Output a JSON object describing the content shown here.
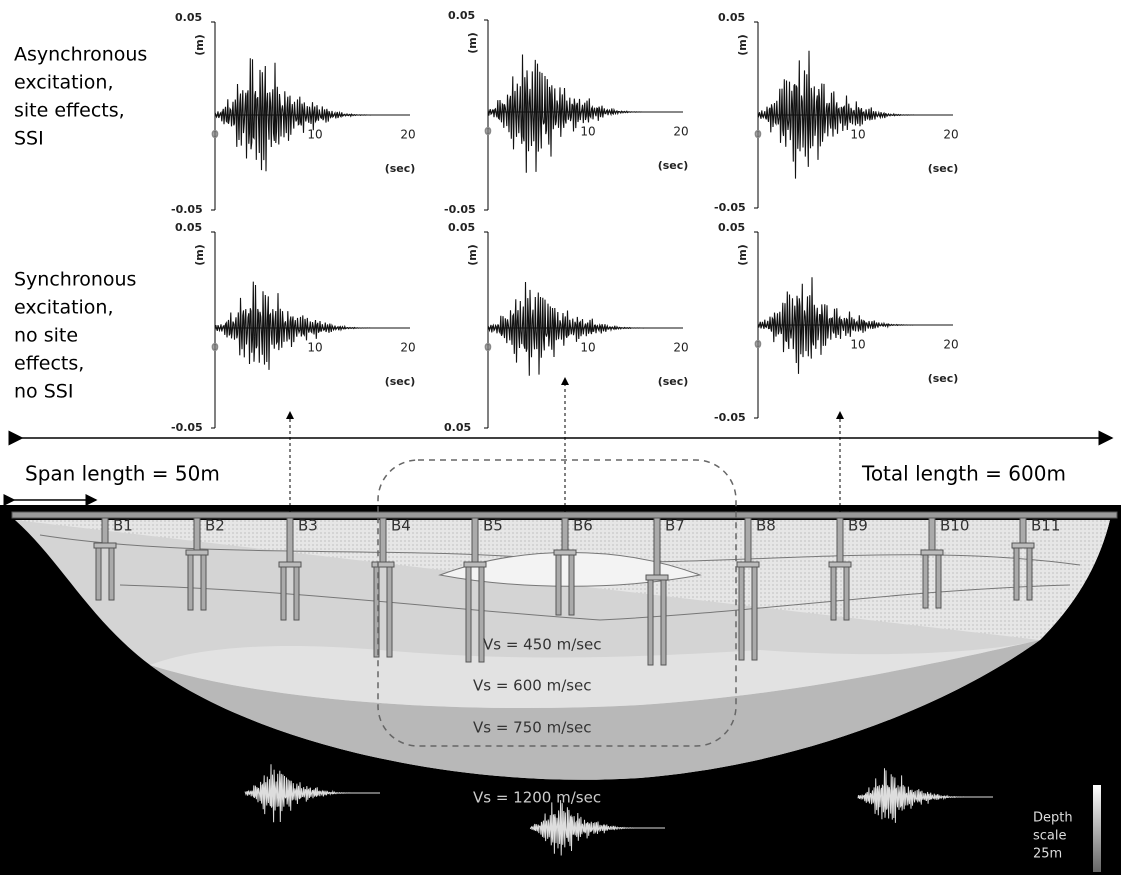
{
  "row_labels": [
    [
      "Asynchronous",
      "excitation,",
      "site effects,",
      "SSI"
    ],
    [
      "Synchronous",
      "excitation,",
      "no site",
      "effects,",
      "no SSI"
    ]
  ],
  "panels": [
    {
      "y_top": "0.05",
      "y_bottom": "-0.05",
      "y_unit": "(m)",
      "x_zero": "0",
      "x_mid": "10",
      "x_max": "20",
      "x_unit": "(sec)"
    },
    {
      "y_top": "0.05",
      "y_bottom": "-0.05",
      "y_unit": "(m)",
      "x_zero": "0",
      "x_mid": "10",
      "x_max": "20",
      "x_unit": "(sec)"
    },
    {
      "y_top": "0.05",
      "y_bottom": "-0.05",
      "y_unit": "(m)",
      "x_zero": "0",
      "x_mid": "10",
      "x_max": "20",
      "x_unit": "(sec)"
    },
    {
      "y_top": "0.05",
      "y_bottom": "-0.05",
      "y_unit": "(m)",
      "x_zero": "0",
      "x_mid": "10",
      "x_max": "20",
      "x_unit": "(sec)"
    },
    {
      "y_top": "0.05",
      "y_bottom": "0.05",
      "y_unit": "(m)",
      "x_zero": "0",
      "x_mid": "10",
      "x_max": "20",
      "x_unit": "(sec)"
    },
    {
      "y_top": "0.05",
      "y_bottom": "-0.05",
      "y_unit": "(m)",
      "x_zero": "0",
      "x_mid": "10",
      "x_max": "20",
      "x_unit": "(sec)"
    }
  ],
  "span_label": "Span length = 50m",
  "total_label": "Total length = 600m",
  "piers": [
    "B1",
    "B2",
    "B3",
    "B4",
    "B5",
    "B6",
    "B7",
    "B8",
    "B9",
    "B10",
    "B11"
  ],
  "layers": [
    "Vs = 450 m/sec",
    "Vs = 600 m/sec",
    "Vs = 750 m/sec",
    "Vs = 1200 m/sec"
  ],
  "depth_scale": [
    "Depth",
    "scale",
    "25m"
  ]
}
